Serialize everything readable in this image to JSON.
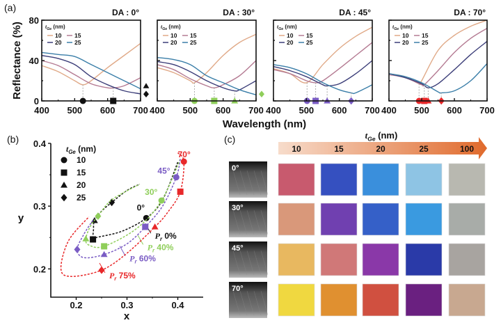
{
  "chart_data": [
    {
      "panel_label": "(a)",
      "type": "line",
      "ylabel": "Reflectance (%)",
      "xlabel": "Wavelength (nm)",
      "xlim": [
        400,
        700
      ],
      "ylim": [
        0,
        80
      ],
      "xticks": [
        "400",
        "500",
        "600",
        "700"
      ],
      "yticks": [
        "0",
        "40",
        "80"
      ],
      "legend_title": {
        "var": "t",
        "sub": "Ge",
        "unit": " (nm)"
      },
      "series_colors": {
        "10": "#e0a987",
        "15": "#b47a92",
        "20": "#3b3d78",
        "25": "#3a7ea8"
      },
      "subplots": [
        {
          "title": "DA : 0°",
          "marker_color": "#111111",
          "series": [
            {
              "name": "10",
              "x": [
                400,
                450,
                500,
                525,
                550,
                600,
                650,
                700
              ],
              "y": [
                35,
                29,
                20,
                16,
                20,
                33,
                45,
                57
              ]
            },
            {
              "name": "15",
              "x": [
                400,
                450,
                500,
                550,
                600,
                620,
                650,
                700
              ],
              "y": [
                40,
                35,
                26,
                17,
                13,
                13,
                15,
                23
              ]
            },
            {
              "name": "20",
              "x": [
                400,
                450,
                500,
                550,
                600,
                650,
                700
              ],
              "y": [
                45,
                42,
                36,
                24,
                16,
                10,
                7
              ]
            },
            {
              "name": "25",
              "x": [
                400,
                450,
                500,
                550,
                600,
                650,
                700
              ],
              "y": [
                48,
                46,
                44,
                36,
                28,
                20,
                12
              ]
            }
          ],
          "minima": [
            {
              "shape": "circle",
              "x": 525,
              "y": 16
            },
            {
              "shape": "square",
              "x": 617,
              "y": 13
            },
            {
              "shape": "triangle",
              "x": 718,
              "y": 12,
              "outside": true
            },
            {
              "shape": "diamond",
              "x": 718,
              "y": 4,
              "outside": true
            }
          ]
        },
        {
          "title": "DA : 30°",
          "marker_color": "#8fce5a",
          "series": [
            {
              "name": "10",
              "x": [
                400,
                450,
                500,
                513,
                550,
                600,
                650,
                700
              ],
              "y": [
                33,
                28,
                20,
                18,
                28,
                45,
                58,
                66
              ]
            },
            {
              "name": "15",
              "x": [
                400,
                450,
                500,
                550,
                573,
                600,
                650,
                700
              ],
              "y": [
                36,
                31,
                22,
                15,
                13,
                16,
                25,
                40
              ]
            },
            {
              "name": "20",
              "x": [
                400,
                450,
                500,
                550,
                600,
                635,
                650,
                700
              ],
              "y": [
                39,
                36,
                29,
                20,
                13,
                10,
                11,
                20
              ]
            },
            {
              "name": "25",
              "x": [
                400,
                450,
                500,
                550,
                600,
                650,
                700
              ],
              "y": [
                43,
                41,
                36,
                25,
                18,
                11,
                6
              ]
            }
          ],
          "minima": [
            {
              "shape": "circle",
              "x": 513,
              "y": 18
            },
            {
              "shape": "square",
              "x": 573,
              "y": 13
            },
            {
              "shape": "triangle",
              "x": 635,
              "y": 10
            },
            {
              "shape": "diamond",
              "x": 718,
              "y": 4,
              "outside": true
            }
          ]
        },
        {
          "title": "DA : 45°",
          "marker_color": "#7a5cc4",
          "series": [
            {
              "name": "10",
              "x": [
                400,
                450,
                500,
                550,
                600,
                650,
                700
              ],
              "y": [
                32,
                27,
                18,
                36,
                52,
                64,
                73
              ]
            },
            {
              "name": "15",
              "x": [
                400,
                450,
                500,
                528,
                550,
                600,
                650,
                700
              ],
              "y": [
                31,
                27,
                20,
                18,
                20,
                32,
                45,
                58
              ]
            },
            {
              "name": "20",
              "x": [
                400,
                450,
                500,
                550,
                563,
                600,
                650,
                700
              ],
              "y": [
                34,
                30,
                24,
                16,
                15,
                17,
                27,
                40
              ]
            },
            {
              "name": "25",
              "x": [
                400,
                450,
                500,
                550,
                600,
                636,
                650,
                700
              ],
              "y": [
                36,
                33,
                27,
                18,
                11,
                8,
                8,
                16
              ]
            }
          ],
          "minima": [
            {
              "shape": "circle",
              "x": 502,
              "y": 18
            },
            {
              "shape": "square",
              "x": 528,
              "y": 18
            },
            {
              "shape": "triangle",
              "x": 563,
              "y": 15
            },
            {
              "shape": "diamond",
              "x": 636,
              "y": 8
            }
          ]
        },
        {
          "title": "DA : 70°",
          "marker_color": "#e8282a",
          "series": [
            {
              "name": "10",
              "x": [
                400,
                450,
                492,
                500,
                550,
                600,
                650,
                700
              ],
              "y": [
                27,
                24,
                17,
                20,
                50,
                65,
                74,
                80
              ]
            },
            {
              "name": "15",
              "x": [
                400,
                450,
                500,
                508,
                550,
                600,
                650,
                700
              ],
              "y": [
                26,
                23,
                16,
                16,
                30,
                48,
                62,
                72
              ]
            },
            {
              "name": "20",
              "x": [
                400,
                450,
                500,
                520,
                550,
                600,
                650,
                700
              ],
              "y": [
                27,
                23,
                17,
                13,
                17,
                31,
                46,
                59
              ]
            },
            {
              "name": "25",
              "x": [
                400,
                450,
                500,
                550,
                560,
                600,
                650,
                700
              ],
              "y": [
                27,
                24,
                18,
                9,
                8,
                10,
                20,
                37
              ]
            }
          ],
          "minima": [
            {
              "shape": "circle",
              "x": 492,
              "y": 17
            },
            {
              "shape": "square",
              "x": 508,
              "y": 16
            },
            {
              "shape": "triangle",
              "x": 520,
              "y": 13
            },
            {
              "shape": "diamond",
              "x": 560,
              "y": 8
            }
          ]
        }
      ]
    },
    {
      "panel_label": "(b)",
      "type": "scatter",
      "xlabel": "x",
      "ylabel": "y",
      "xlim": [
        0.15,
        0.45
      ],
      "ylim": [
        0.155,
        0.4
      ],
      "xticks": [
        "0.2",
        "0.3",
        "0.4"
      ],
      "yticks": [
        "0.2",
        "0.3",
        "0.4"
      ],
      "legend_title": {
        "var": "t",
        "sub": "Ge",
        "unit": " (nm)"
      },
      "legend": [
        {
          "shape": "circle",
          "label": "10"
        },
        {
          "shape": "square",
          "label": "15"
        },
        {
          "shape": "triangle",
          "label": "20"
        },
        {
          "shape": "diamond",
          "label": "25"
        }
      ],
      "series": [
        {
          "angle": "0°",
          "color": "#111111",
          "pr_label": "0%",
          "points": [
            {
              "shape": "circle",
              "x": 0.338,
              "y": 0.281
            },
            {
              "shape": "square",
              "x": 0.233,
              "y": 0.247
            },
            {
              "shape": "triangle",
              "x": 0.236,
              "y": 0.277
            },
            {
              "shape": "diamond",
              "x": 0.27,
              "y": 0.306
            }
          ],
          "curve": [
            [
              0.4,
              0.37
            ],
            [
              0.37,
              0.31
            ],
            [
              0.338,
              0.281
            ],
            [
              0.29,
              0.26
            ],
            [
              0.24,
              0.25
            ],
            [
              0.233,
              0.247
            ],
            [
              0.234,
              0.262
            ],
            [
              0.236,
              0.277
            ],
            [
              0.25,
              0.292
            ],
            [
              0.27,
              0.306
            ],
            [
              0.3,
              0.325
            ],
            [
              0.325,
              0.335
            ]
          ]
        },
        {
          "angle": "30°",
          "color": "#8fce5a",
          "pr_label": "40%",
          "points": [
            {
              "shape": "circle",
              "x": 0.368,
              "y": 0.309
            },
            {
              "shape": "square",
              "x": 0.255,
              "y": 0.236
            },
            {
              "shape": "triangle",
              "x": 0.219,
              "y": 0.248
            },
            {
              "shape": "diamond",
              "x": 0.243,
              "y": 0.284
            }
          ],
          "curve": [
            [
              0.405,
              0.375
            ],
            [
              0.368,
              0.309
            ],
            [
              0.32,
              0.265
            ],
            [
              0.255,
              0.236
            ],
            [
              0.225,
              0.238
            ],
            [
              0.219,
              0.248
            ],
            [
              0.228,
              0.268
            ],
            [
              0.243,
              0.284
            ],
            [
              0.27,
              0.31
            ],
            [
              0.325,
              0.335
            ]
          ]
        },
        {
          "angle": "45°",
          "color": "#7a5cc4",
          "pr_label": "60%",
          "points": [
            {
              "shape": "circle",
              "x": 0.397,
              "y": 0.346
            },
            {
              "shape": "square",
              "x": 0.336,
              "y": 0.267
            },
            {
              "shape": "triangle",
              "x": 0.255,
              "y": 0.223
            },
            {
              "shape": "diamond",
              "x": 0.202,
              "y": 0.231
            }
          ],
          "curve": [
            [
              0.405,
              0.375
            ],
            [
              0.397,
              0.346
            ],
            [
              0.37,
              0.3
            ],
            [
              0.336,
              0.267
            ],
            [
              0.3,
              0.24
            ],
            [
              0.255,
              0.223
            ],
            [
              0.215,
              0.218
            ],
            [
              0.202,
              0.231
            ],
            [
              0.215,
              0.255
            ],
            [
              0.235,
              0.28
            ]
          ]
        },
        {
          "angle": "70°",
          "color": "#e8282a",
          "pr_label": "75%",
          "points": [
            {
              "shape": "circle",
              "x": 0.412,
              "y": 0.371
            },
            {
              "shape": "square",
              "x": 0.405,
              "y": 0.323
            },
            {
              "shape": "triangle",
              "x": 0.355,
              "y": 0.267
            },
            {
              "shape": "diamond",
              "x": 0.25,
              "y": 0.198
            }
          ],
          "curve": [
            [
              0.4,
              0.385
            ],
            [
              0.412,
              0.371
            ],
            [
              0.405,
              0.323
            ],
            [
              0.38,
              0.29
            ],
            [
              0.355,
              0.267
            ],
            [
              0.3,
              0.225
            ],
            [
              0.25,
              0.198
            ],
            [
              0.19,
              0.188
            ],
            [
              0.17,
              0.2
            ],
            [
              0.185,
              0.245
            ],
            [
              0.225,
              0.283
            ]
          ]
        }
      ],
      "pr_symbol": {
        "var": "P",
        "sub": "r"
      }
    }
  ],
  "panel_c": {
    "panel_label": "(c)",
    "axis_title": {
      "var": "t",
      "sub": "Ge",
      "unit": " (nm)"
    },
    "columns": [
      "10",
      "15",
      "20",
      "25",
      "100"
    ],
    "arrow_colors": [
      "#f7dccb",
      "#e06a2c"
    ],
    "rows": [
      {
        "angle": "0°",
        "swatches": [
          "#c85a6e",
          "#3550c0",
          "#3a8fdc",
          "#8ec4e4",
          "#b8b8b0"
        ]
      },
      {
        "angle": "30°",
        "swatches": [
          "#d9987a",
          "#7040b0",
          "#3560c8",
          "#3a9ae0",
          "#a8aca8"
        ]
      },
      {
        "angle": "45°",
        "swatches": [
          "#e8b860",
          "#d07878",
          "#8a38a8",
          "#2a3aa8",
          "#a8a4a0"
        ]
      },
      {
        "angle": "70°",
        "swatches": [
          "#f0d840",
          "#e09030",
          "#d05040",
          "#6a2080",
          "#c8a890"
        ]
      }
    ]
  }
}
